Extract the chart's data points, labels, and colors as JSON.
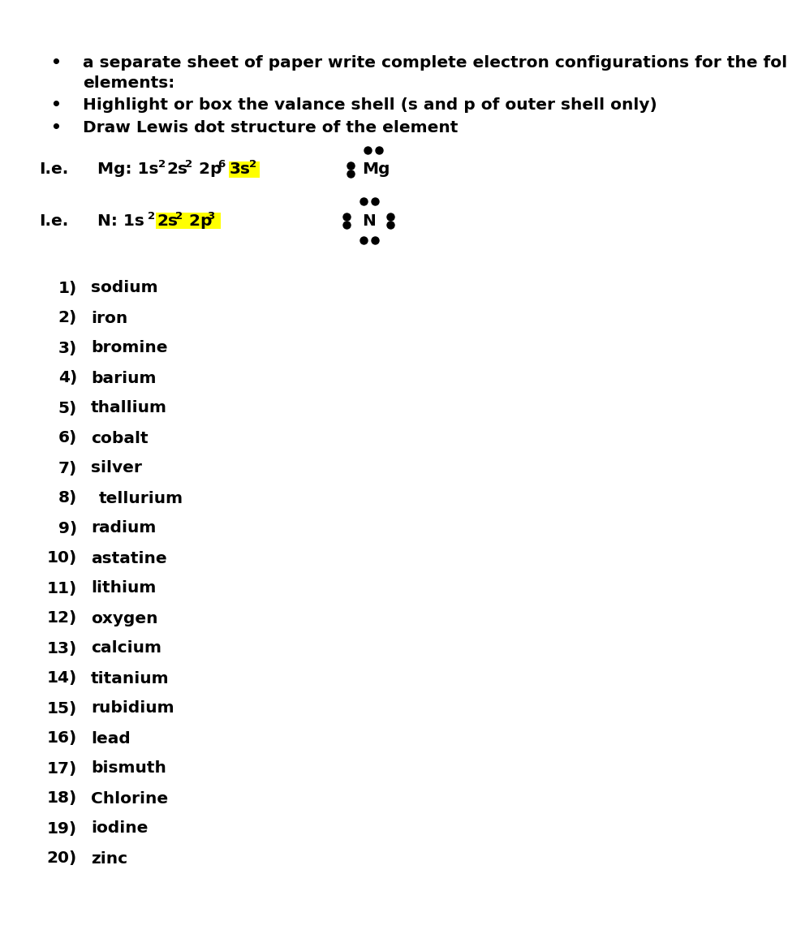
{
  "page_bg": "#ffffff",
  "text_color": "#000000",
  "highlight_color": "#ffff00",
  "dot_color": "#000000",
  "font_size": 14.5,
  "font_size_super": 9.5,
  "elements": [
    "sodium",
    "iron",
    "bromine",
    "barium",
    "thallium",
    "cobalt",
    "silver",
    "tellurium",
    "radium",
    "astatine",
    "lithium",
    "oxygen",
    "calcium",
    "titanium",
    "rubidium",
    "lead",
    "bismuth",
    "Chlorine",
    "iodine",
    "zinc"
  ],
  "bullet1_line1": "a separate sheet of paper write complete electron configurations for the following",
  "bullet1_line2": "elements:",
  "bullet2": "Highlight or box the valance shell (s and p of outer shell only)",
  "bullet3": "Draw Lewis dot structure of the element"
}
